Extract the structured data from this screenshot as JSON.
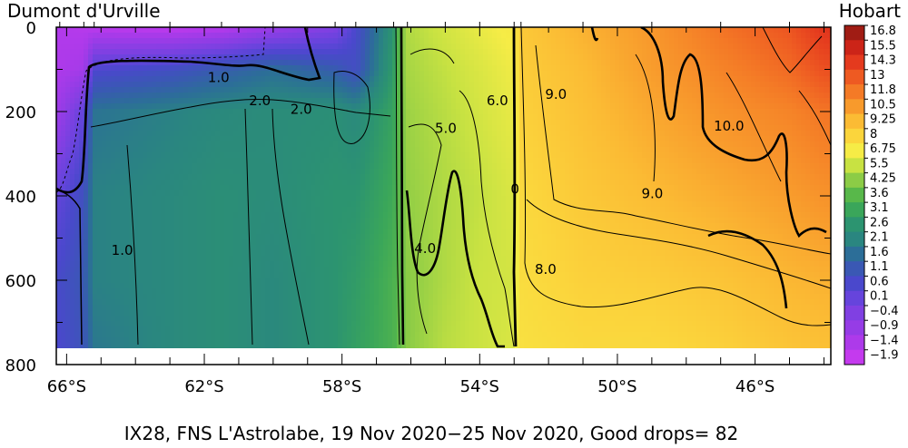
{
  "chart_data": {
    "type": "heatmap",
    "title": "IX28, FNS L'Astrolabe, 19 Nov 2020−25 Nov 2020, Good drops= 82",
    "left_label": "Dumont d'Urville",
    "right_label": "Hobart",
    "xlabel": "",
    "ylabel": "",
    "x_ticks": [
      -66,
      -62,
      -58,
      -54,
      -50,
      -46
    ],
    "x_tick_labels": [
      "66°S",
      "62°S",
      "58°S",
      "54°S",
      "50°S",
      "46°S"
    ],
    "xlim": [
      -66.3,
      -43.8
    ],
    "y_ticks": [
      0,
      200,
      400,
      600,
      800
    ],
    "y_tick_labels": [
      "0",
      "200",
      "400",
      "600",
      "800"
    ],
    "ylim": [
      0,
      800
    ],
    "y_inverted": true,
    "data_max_depth": 760,
    "colorbar_labels": [
      "16.8",
      "15.5",
      "14.3",
      "13",
      "11.8",
      "10.5",
      "9.25",
      "8",
      "6.75",
      "5.5",
      "4.25",
      "3.6",
      "3.1",
      "2.6",
      "2.1",
      "1.6",
      "1.1",
      "0.6",
      "0.1",
      "−0.4",
      "−0.9",
      "−1.4",
      "−1.9"
    ],
    "colorbar_values": [
      16.8,
      15.5,
      14.3,
      13,
      11.8,
      10.5,
      9.25,
      8,
      6.75,
      5.5,
      4.25,
      3.6,
      3.1,
      2.6,
      2.1,
      1.6,
      1.1,
      0.6,
      0.1,
      -0.4,
      -0.9,
      -1.4,
      -1.9
    ],
    "colorbar_colors": [
      "#a01c14",
      "#cc2418",
      "#e43a1e",
      "#ee5a22",
      "#f47a26",
      "#f89a2c",
      "#fbbb34",
      "#fbd53c",
      "#f6ec46",
      "#c8e242",
      "#8ccc46",
      "#58b84a",
      "#3aa65a",
      "#2c9470",
      "#2a8680",
      "#2c6e98",
      "#3a58b4",
      "#4a48cc",
      "#6644dc",
      "#8040e2",
      "#963ce6",
      "#ad3aea",
      "#c43aee"
    ],
    "contour_labels": [
      {
        "text": "1.0",
        "lon": -61.9,
        "depth": 130
      },
      {
        "text": "2.0",
        "lon": -60.7,
        "depth": 185
      },
      {
        "text": "2.0",
        "lon": -59.5,
        "depth": 205
      },
      {
        "text": "1.0",
        "lon": -64.7,
        "depth": 540
      },
      {
        "text": "6.0",
        "lon": -53.8,
        "depth": 185
      },
      {
        "text": "5.0",
        "lon": -55.3,
        "depth": 250
      },
      {
        "text": "4.0",
        "lon": -55.9,
        "depth": 535
      },
      {
        "text": "9.0",
        "lon": -52.1,
        "depth": 170
      },
      {
        "text": "10.0",
        "lon": -47.2,
        "depth": 245
      },
      {
        "text": "9.0",
        "lon": -49.3,
        "depth": 405
      },
      {
        "text": "8.0",
        "lon": -52.4,
        "depth": 585
      },
      {
        "text": "0",
        "lon": -53.1,
        "depth": 395
      }
    ],
    "temperature_field": {
      "depths": [
        0,
        100,
        200,
        400,
        600,
        760
      ],
      "profiles": [
        {
          "lon": -66.2,
          "temps": [
            -1.5,
            -1.4,
            -1.0,
            0.2,
            0.7,
            0.6
          ]
        },
        {
          "lon": -65.5,
          "temps": [
            -1.6,
            -1.2,
            0.2,
            0.9,
            1.1,
            1.0
          ]
        },
        {
          "lon": -65.2,
          "temps": [
            -1.7,
            0.5,
            1.7,
            2.0,
            2.0,
            1.8
          ]
        },
        {
          "lon": -63.0,
          "temps": [
            -1.8,
            0.8,
            2.0,
            2.2,
            2.2,
            2.2
          ]
        },
        {
          "lon": -61.5,
          "temps": [
            -1.6,
            1.2,
            2.2,
            2.4,
            2.4,
            2.4
          ]
        },
        {
          "lon": -60.0,
          "temps": [
            -1.0,
            1.6,
            2.3,
            2.3,
            2.2,
            2.2
          ]
        },
        {
          "lon": -58.2,
          "temps": [
            -0.4,
            1.2,
            2.4,
            2.6,
            2.6,
            2.6
          ]
        },
        {
          "lon": -57.6,
          "temps": [
            0.6,
            0.8,
            2.2,
            2.6,
            2.8,
            2.9
          ]
        },
        {
          "lon": -56.5,
          "temps": [
            2.6,
            2.8,
            3.0,
            3.2,
            3.4,
            3.4
          ]
        },
        {
          "lon": -56.1,
          "temps": [
            5.0,
            4.8,
            4.6,
            4.4,
            4.2,
            4.2
          ]
        },
        {
          "lon": -55.0,
          "temps": [
            5.8,
            5.4,
            5.2,
            5.0,
            5.0,
            5.2
          ]
        },
        {
          "lon": -54.0,
          "temps": [
            6.4,
            6.0,
            5.8,
            5.4,
            5.6,
            5.6
          ]
        },
        {
          "lon": -53.0,
          "temps": [
            7.0,
            6.6,
            6.4,
            6.0,
            5.8,
            6.0
          ]
        },
        {
          "lon": -52.8,
          "temps": [
            8.6,
            8.4,
            8.2,
            7.8,
            7.6,
            7.4
          ]
        },
        {
          "lon": -51.0,
          "temps": [
            9.6,
            9.2,
            9.0,
            8.6,
            8.2,
            7.8
          ]
        },
        {
          "lon": -49.0,
          "temps": [
            10.6,
            10.4,
            10.0,
            9.2,
            8.4,
            7.8
          ]
        },
        {
          "lon": -47.0,
          "temps": [
            12.0,
            11.4,
            10.8,
            9.8,
            8.8,
            8.2
          ]
        },
        {
          "lon": -45.0,
          "temps": [
            13.2,
            12.4,
            11.4,
            10.4,
            9.4,
            8.8
          ]
        },
        {
          "lon": -44.0,
          "temps": [
            14.6,
            13.4,
            12.0,
            10.8,
            9.6,
            9.0
          ]
        }
      ]
    }
  }
}
